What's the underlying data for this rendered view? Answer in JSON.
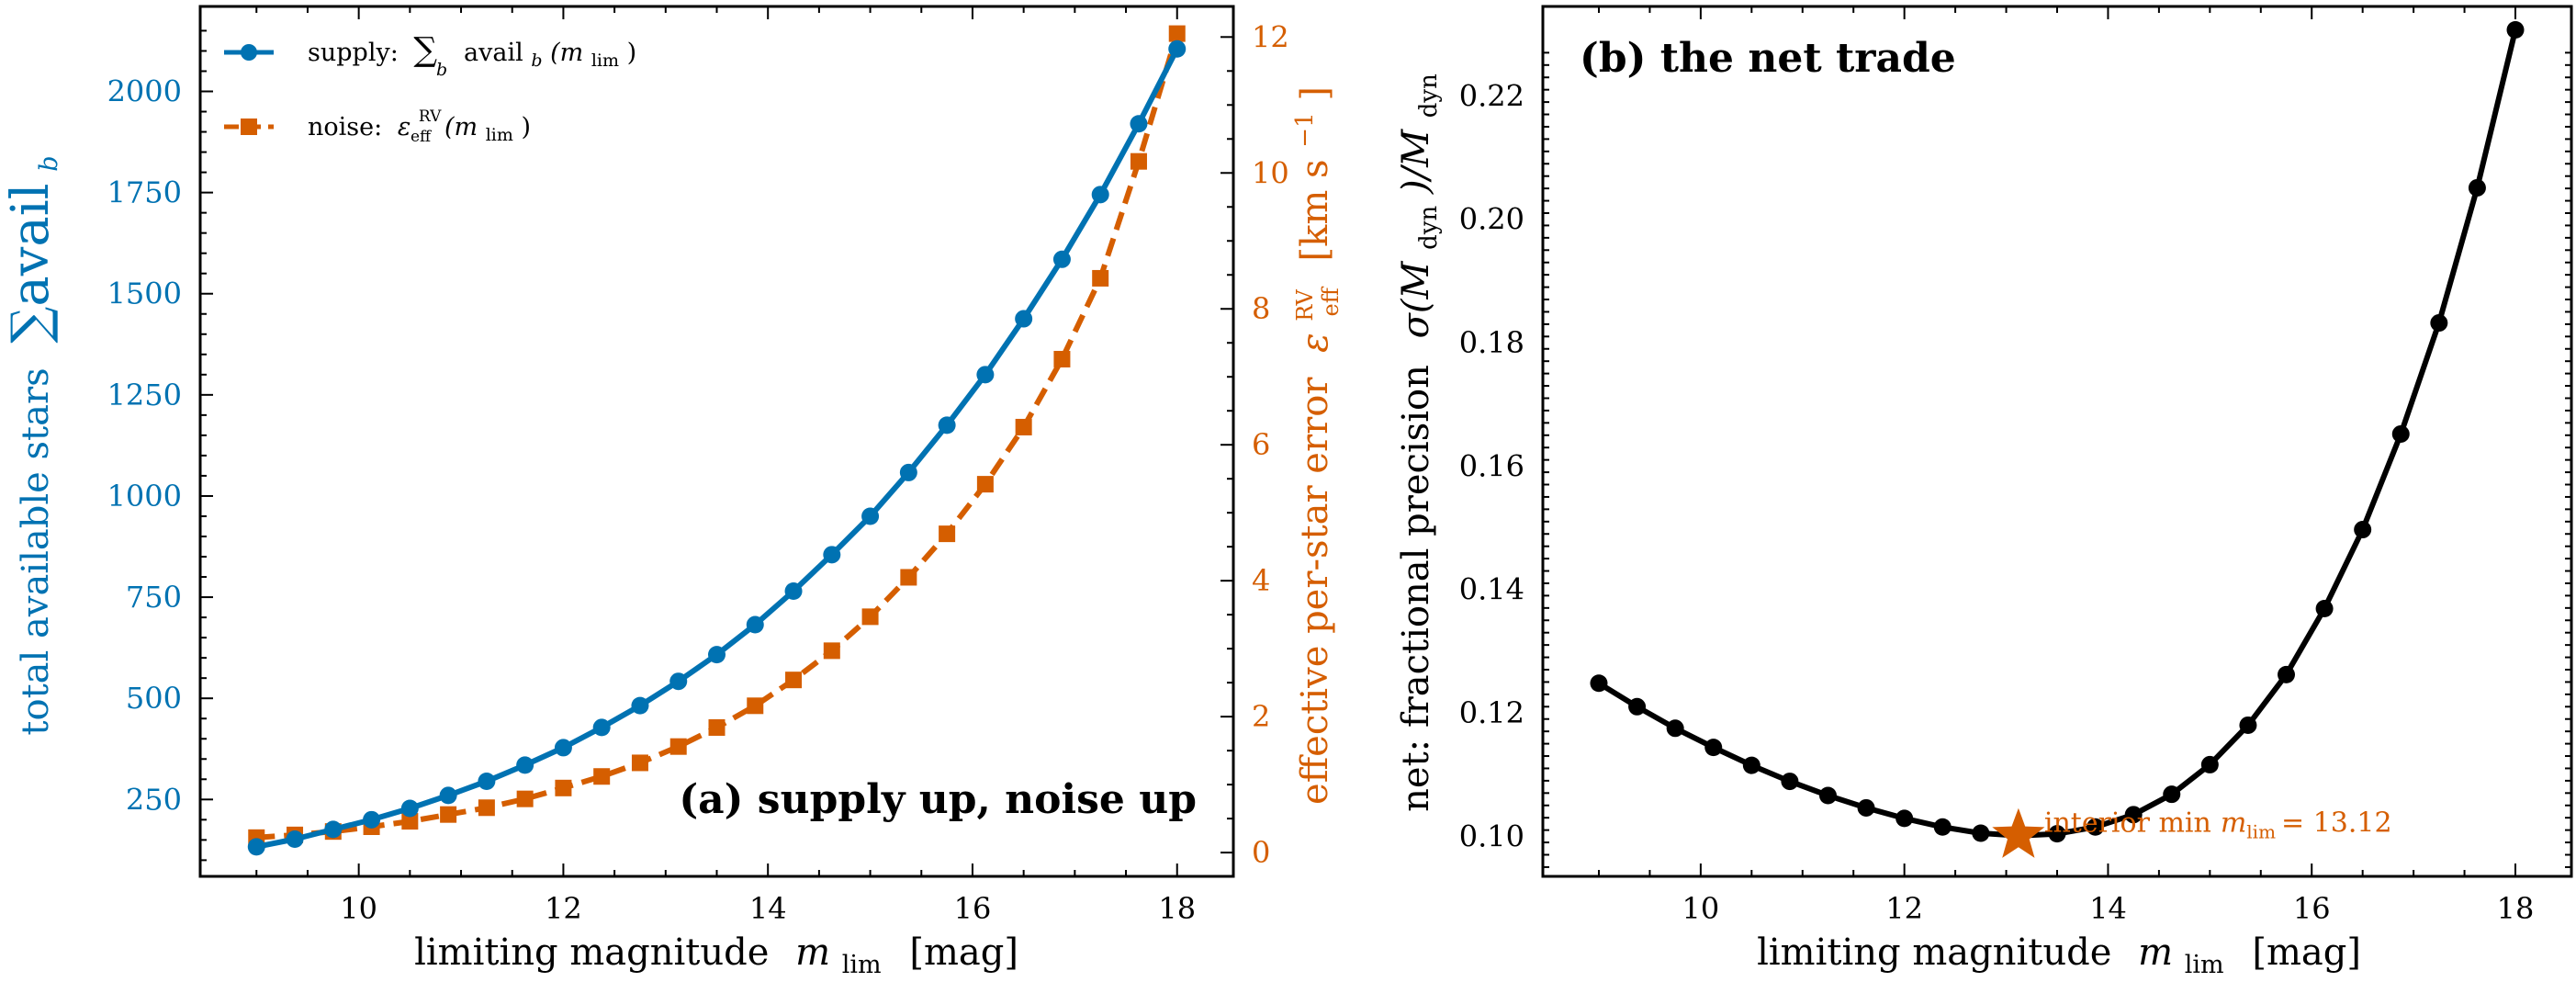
{
  "colors": {
    "supply": "#0072b2",
    "noise": "#d55e00",
    "net": "#000000",
    "star": "#d55e00"
  },
  "chart_data": [
    {
      "type": "line",
      "panel_label": "(a) supply up, noise up",
      "xlabel": "limiting magnitude",
      "xlabel_symbol": "m",
      "xlabel_sub": "lim",
      "xlabel_unit": "[mag]",
      "xlim": [
        8.45,
        18.55
      ],
      "xticks": [
        10,
        12,
        14,
        16,
        18
      ],
      "y_left": {
        "label": "total available stars",
        "label_math": "∑avail",
        "label_math_sub": "b",
        "lim": [
          60,
          2210
        ],
        "ticks": [
          250,
          500,
          750,
          1000,
          1250,
          1500,
          1750,
          2000
        ]
      },
      "y_right": {
        "label": "effective per-star error",
        "label_math": "ε",
        "label_math_sup": "RV",
        "label_math_sub": "eff",
        "label_unit": "[km s",
        "label_unit_sup": "−1",
        "label_unit_close": "]",
        "lim": [
          -0.35,
          12.45
        ],
        "ticks": [
          0,
          2,
          4,
          6,
          8,
          10,
          12
        ]
      },
      "legend_position": "top-left",
      "series": [
        {
          "name": "supply: ∑avail_b(m_lim)",
          "legend_text": "supply:",
          "legend_math": "∑",
          "legend_math_sub": "b",
          "legend_math_body": "avail",
          "legend_math_body_sub": "b",
          "legend_math_arg": "(m",
          "legend_math_arg_sub": "lim",
          "legend_math_arg_close": ")",
          "axis": "left",
          "style": "solid",
          "marker": "circle",
          "x": [
            9.0,
            9.375,
            9.75,
            10.125,
            10.5,
            10.875,
            11.25,
            11.625,
            12.0,
            12.375,
            12.75,
            13.125,
            13.5,
            13.875,
            14.25,
            14.625,
            15.0,
            15.375,
            15.75,
            16.125,
            16.5,
            16.875,
            17.25,
            17.625,
            18.0
          ],
          "y": [
            133,
            152,
            176,
            200,
            228,
            260,
            295,
            335,
            378,
            428,
            482,
            542,
            608,
            682,
            765,
            855,
            950,
            1058,
            1175,
            1300,
            1438,
            1585,
            1745,
            1920,
            2105
          ]
        },
        {
          "name": "noise: ε_eff^RV(m_lim)",
          "legend_text": "noise:",
          "legend_math": "ε",
          "legend_math_sup": "RV",
          "legend_math_sub": "eff",
          "legend_math_arg": "(m",
          "legend_math_arg_sub": "lim",
          "legend_math_arg_close": ")",
          "axis": "right",
          "style": "dashed",
          "marker": "square",
          "x": [
            9.0,
            9.375,
            9.75,
            10.125,
            10.5,
            10.875,
            11.25,
            11.625,
            12.0,
            12.375,
            12.75,
            13.125,
            13.5,
            13.875,
            14.25,
            14.625,
            15.0,
            15.375,
            15.75,
            16.125,
            16.5,
            16.875,
            17.25,
            17.625,
            18.0
          ],
          "y": [
            0.22,
            0.26,
            0.31,
            0.38,
            0.46,
            0.56,
            0.66,
            0.79,
            0.95,
            1.12,
            1.32,
            1.56,
            1.84,
            2.16,
            2.54,
            2.97,
            3.47,
            4.05,
            4.69,
            5.42,
            6.26,
            7.26,
            8.45,
            10.17,
            12.05
          ]
        }
      ]
    },
    {
      "type": "line",
      "panel_label": "(b) the net trade",
      "xlabel": "limiting magnitude",
      "xlabel_symbol": "m",
      "xlabel_sub": "lim",
      "xlabel_unit": "[mag]",
      "xlim": [
        8.45,
        18.55
      ],
      "xticks": [
        10,
        12,
        14,
        16,
        18
      ],
      "ylabel": "net: fractional precision",
      "ylabel_math": "σ(M",
      "ylabel_math_sub": "dyn",
      "ylabel_math_mid": ")/M",
      "ylabel_math_sub2": "dyn",
      "ylim": [
        0.0935,
        0.2345
      ],
      "yticks": [
        0.1,
        0.12,
        0.14,
        0.16,
        0.18,
        0.2,
        0.22
      ],
      "series": [
        {
          "axis": "left",
          "style": "solid",
          "marker": "circle",
          "x": [
            9.0,
            9.375,
            9.75,
            10.125,
            10.5,
            10.875,
            11.25,
            11.625,
            12.0,
            12.375,
            12.75,
            13.125,
            13.5,
            13.875,
            14.25,
            14.625,
            15.0,
            15.375,
            15.75,
            16.125,
            16.5,
            16.875,
            17.25,
            17.625,
            18.0
          ],
          "y": [
            0.1248,
            0.121,
            0.1175,
            0.1144,
            0.1115,
            0.1089,
            0.1066,
            0.1046,
            0.1029,
            0.1015,
            0.1005,
            0.1001,
            0.1004,
            0.1015,
            0.1035,
            0.1068,
            0.1116,
            0.118,
            0.1262,
            0.1369,
            0.1497,
            0.1652,
            0.1832,
            0.2051,
            0.2307
          ]
        }
      ],
      "annotation": {
        "x": 13.12,
        "y": 0.1001,
        "marker": "star",
        "text": "interior min",
        "math": "m",
        "math_sub": "lim",
        "math_rest": "= 13.12"
      }
    }
  ]
}
